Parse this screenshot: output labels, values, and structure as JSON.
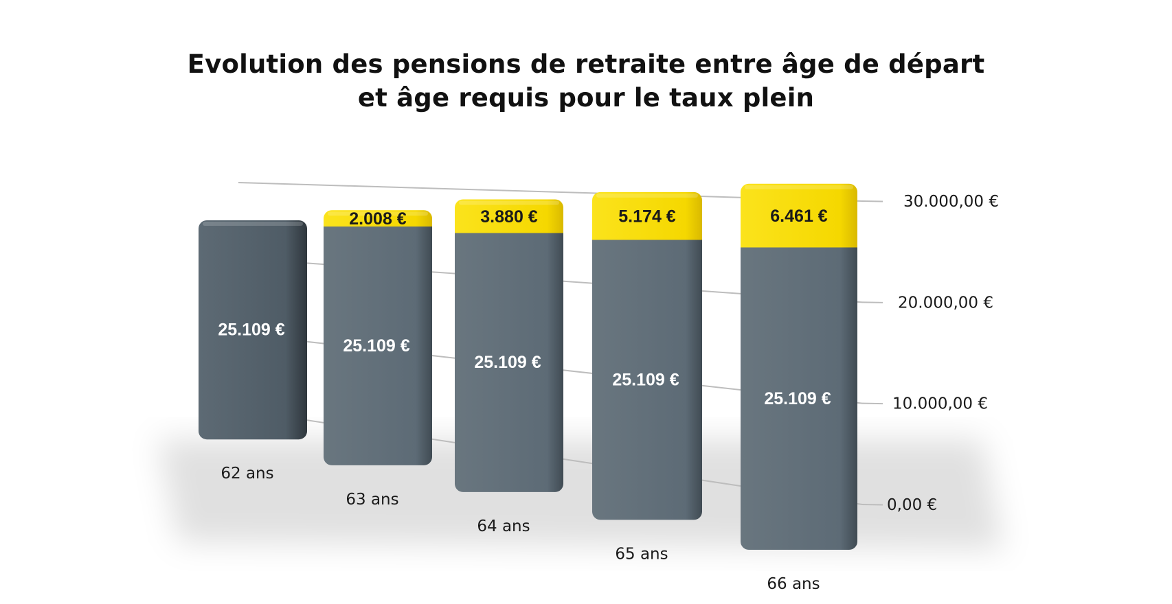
{
  "chart_data": {
    "type": "bar",
    "stacked": true,
    "title_line1": "Evolution des pensions de retraite entre âge de départ",
    "title_line2": "et âge requis pour le taux plein",
    "categories": [
      "62 ans",
      "63 ans",
      "64 ans",
      "65 ans",
      "66 ans"
    ],
    "series": [
      {
        "values": [
          25109,
          25109,
          25109,
          25109,
          25109
        ],
        "labels": [
          "25.109 €",
          "25.109 €",
          "25.109 €",
          "25.109 €",
          "25.109 €"
        ],
        "color": "#5d6b76"
      },
      {
        "values": [
          0,
          2008,
          3880,
          5174,
          6461
        ],
        "labels": [
          "",
          "2.008 €",
          "3.880 €",
          "5.174 €",
          "6.461 €"
        ],
        "color": "#f5d800"
      }
    ],
    "y_ticks": [
      0,
      10000,
      20000,
      30000
    ],
    "y_tick_labels": [
      "0,00 €",
      "10.000,00 €",
      "20.000,00 €",
      "30.000,00 €"
    ],
    "ylim": [
      0,
      30000
    ],
    "grid": true,
    "y_axis_side": "right",
    "style": "3d"
  }
}
